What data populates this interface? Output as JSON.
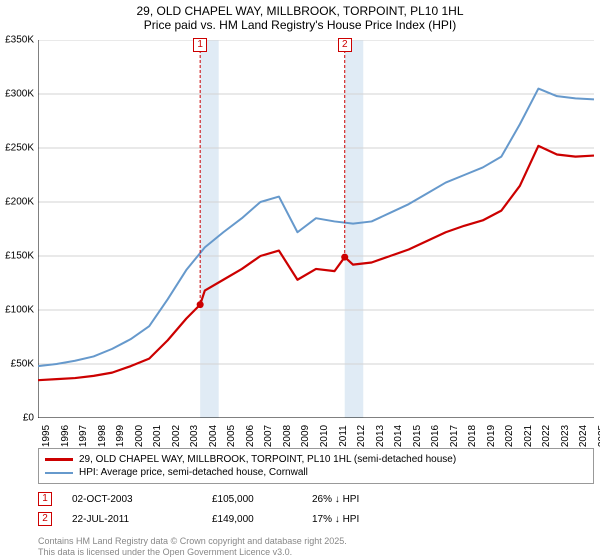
{
  "title": {
    "line1": "29, OLD CHAPEL WAY, MILLBROOK, TORPOINT, PL10 1HL",
    "line2": "Price paid vs. HM Land Registry's House Price Index (HPI)"
  },
  "chart": {
    "type": "line",
    "background_color": "#ffffff",
    "grid_color": "#d3d3d3",
    "axis_color": "#000000",
    "font_size_axis": 10,
    "font_size_title": 12,
    "ylim": [
      0,
      350000
    ],
    "ytick_labels": [
      "£0",
      "£50K",
      "£100K",
      "£150K",
      "£200K",
      "£250K",
      "£300K",
      "£350K"
    ],
    "ytick_values": [
      0,
      50000,
      100000,
      150000,
      200000,
      250000,
      300000,
      350000
    ],
    "xlim": [
      1995,
      2025
    ],
    "xtick_labels": [
      "1995",
      "1996",
      "1997",
      "1998",
      "1999",
      "2000",
      "2001",
      "2002",
      "2003",
      "2004",
      "2005",
      "2006",
      "2007",
      "2008",
      "2009",
      "2010",
      "2011",
      "2012",
      "2013",
      "2014",
      "2015",
      "2016",
      "2017",
      "2018",
      "2019",
      "2020",
      "2021",
      "2022",
      "2023",
      "2024",
      "2025"
    ],
    "xtick_values": [
      1995,
      1996,
      1997,
      1998,
      1999,
      2000,
      2001,
      2002,
      2003,
      2004,
      2005,
      2006,
      2007,
      2008,
      2009,
      2010,
      2011,
      2012,
      2013,
      2014,
      2015,
      2016,
      2017,
      2018,
      2019,
      2020,
      2021,
      2022,
      2023,
      2024,
      2025
    ],
    "shade_bands": [
      {
        "x_from": 2003.75,
        "x_to": 2004.75,
        "color": "#c7dbed",
        "opacity": 0.55
      },
      {
        "x_from": 2011.55,
        "x_to": 2012.55,
        "color": "#c7dbed",
        "opacity": 0.55
      }
    ],
    "series": [
      {
        "id": "hpi",
        "label": "HPI: Average price, semi-detached house, Cornwall",
        "color": "#6699cc",
        "line_width": 2,
        "x": [
          1995,
          1996,
          1997,
          1998,
          1999,
          2000,
          2001,
          2002,
          2003,
          2004,
          2005,
          2006,
          2007,
          2008,
          2009,
          2010,
          2011,
          2012,
          2013,
          2014,
          2015,
          2016,
          2017,
          2018,
          2019,
          2020,
          2021,
          2022,
          2023,
          2024,
          2025
        ],
        "y": [
          48000,
          50000,
          53000,
          57000,
          64000,
          73000,
          85000,
          110000,
          137000,
          158000,
          172000,
          185000,
          200000,
          205000,
          172000,
          185000,
          182000,
          180000,
          182000,
          190000,
          198000,
          208000,
          218000,
          225000,
          232000,
          242000,
          272000,
          305000,
          298000,
          296000,
          295000
        ]
      },
      {
        "id": "property",
        "label": "29, OLD CHAPEL WAY, MILLBROOK, TORPOINT, PL10 1HL (semi-detached house)",
        "color": "#cc0000",
        "line_width": 2.2,
        "x": [
          1995,
          1996,
          1997,
          1998,
          1999,
          2000,
          2001,
          2002,
          2003,
          2003.75,
          2004,
          2005,
          2006,
          2007,
          2008,
          2009,
          2010,
          2011,
          2011.55,
          2012,
          2013,
          2014,
          2015,
          2016,
          2017,
          2018,
          2019,
          2020,
          2021,
          2022,
          2023,
          2024,
          2025
        ],
        "y": [
          35000,
          36000,
          37000,
          39000,
          42000,
          48000,
          55000,
          72000,
          92000,
          105000,
          118000,
          128000,
          138000,
          150000,
          155000,
          128000,
          138000,
          136000,
          149000,
          142000,
          144000,
          150000,
          156000,
          164000,
          172000,
          178000,
          183000,
          192000,
          215000,
          252000,
          244000,
          242000,
          243000
        ]
      }
    ],
    "sale_markers": [
      {
        "n": "1",
        "x": 2003.75,
        "y": 105000,
        "box_top_y": 0
      },
      {
        "n": "2",
        "x": 2011.55,
        "y": 149000,
        "box_top_y": 0
      }
    ]
  },
  "legend": {
    "rows": [
      {
        "color": "#cc0000",
        "width": 2.2,
        "label": "29, OLD CHAPEL WAY, MILLBROOK, TORPOINT, PL10 1HL (semi-detached house)"
      },
      {
        "color": "#6699cc",
        "width": 2,
        "label": "HPI: Average price, semi-detached house, Cornwall"
      }
    ]
  },
  "sales": [
    {
      "n": "1",
      "date": "02-OCT-2003",
      "price": "£105,000",
      "diff": "26% ↓ HPI"
    },
    {
      "n": "2",
      "date": "22-JUL-2011",
      "price": "£149,000",
      "diff": "17% ↓ HPI"
    }
  ],
  "footer": {
    "line1": "Contains HM Land Registry data © Crown copyright and database right 2025.",
    "line2": "This data is licensed under the Open Government Licence v3.0."
  },
  "colors": {
    "marker_border": "#cc0000",
    "footer_text": "#888888"
  }
}
